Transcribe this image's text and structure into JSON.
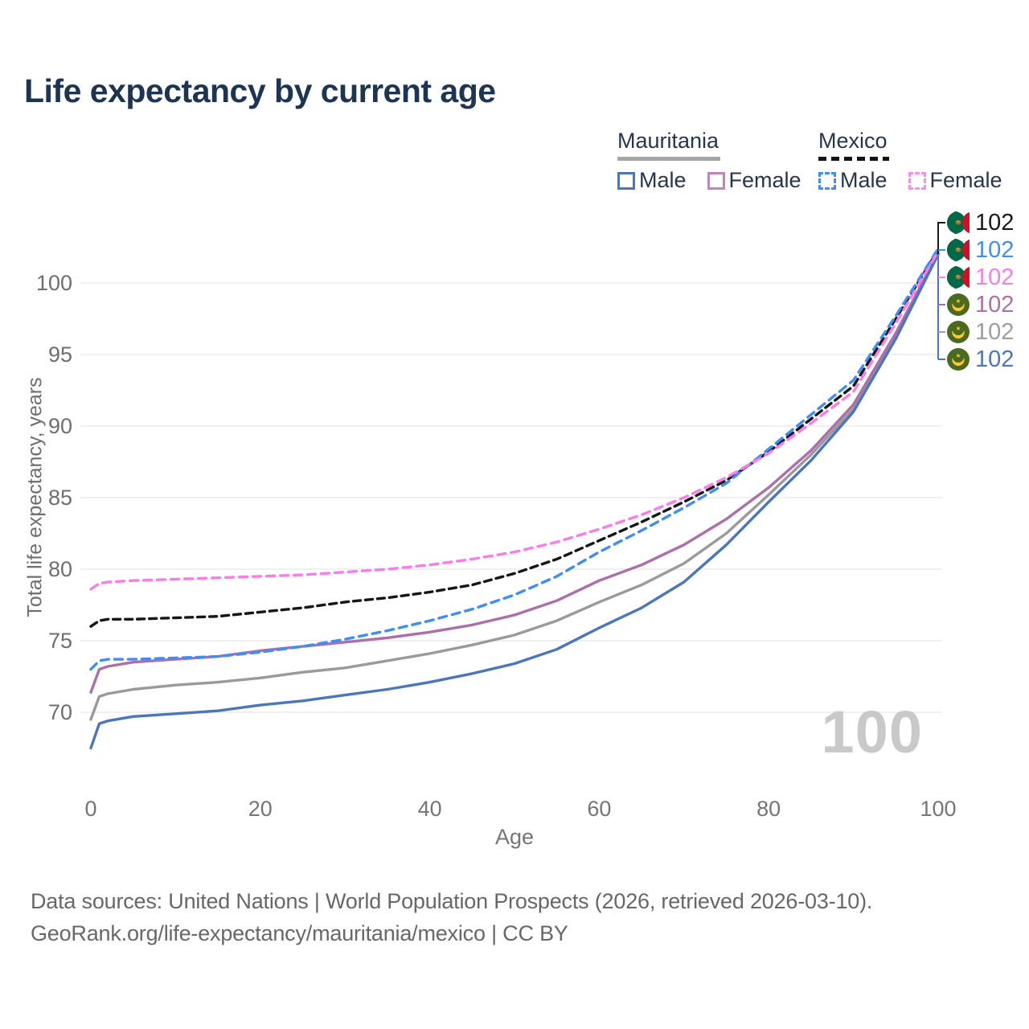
{
  "title": "Life expectancy by current age",
  "legend": {
    "mauritania": {
      "label": "Mauritania",
      "male_label": "Male",
      "female_label": "Female"
    },
    "mexico": {
      "label": "Mexico",
      "male_label": "Male",
      "female_label": "Female"
    }
  },
  "watermark": "100",
  "footer": {
    "line1": "Data sources: United Nations | World Population Prospects (2026, retrieved 2026-03-10).",
    "line2": "GeoRank.org/life-expectancy/mauritania/mexico | CC BY"
  },
  "colors": {
    "title_navy": "#1d3553",
    "axis_gray": "#6e6e6e",
    "gridline": "#ebebeb",
    "watermark_gray": "#c9c9c9",
    "mauritania_male": "#4b76bd",
    "mauritania_female": "#ad6fa9",
    "mauritania_both": "#9a9a9a",
    "mexico_male": "#3e8ef6",
    "mexico_female": "#fb7be8",
    "mexico_both": "#161616"
  },
  "chart_data": {
    "type": "line",
    "title": "Life expectancy by current age",
    "xlabel": "Age",
    "ylabel": "Total life expectancy, years",
    "xlim": [
      0,
      100
    ],
    "ylim": [
      66.5,
      102.5
    ],
    "xticks": [
      0,
      20,
      40,
      60,
      80,
      100
    ],
    "yticks": [
      70,
      75,
      80,
      85,
      90,
      95,
      100
    ],
    "grid": "horizontal-only",
    "legend_position": "top-right",
    "x": [
      0,
      1,
      2,
      5,
      10,
      15,
      20,
      25,
      30,
      35,
      40,
      45,
      50,
      55,
      60,
      65,
      70,
      75,
      80,
      85,
      90,
      95,
      100
    ],
    "series": [
      {
        "id": "mauritania-both",
        "name": "Mauritania Both sexes",
        "country": "Mauritania",
        "sex": "Both",
        "style": "solid",
        "color": "#9a9a9a",
        "dash": null,
        "values": [
          69.5,
          71.1,
          71.3,
          71.6,
          71.9,
          72.1,
          72.4,
          72.8,
          73.1,
          73.6,
          74.1,
          74.7,
          75.4,
          76.4,
          77.7,
          78.9,
          80.4,
          82.5,
          85.2,
          88.0,
          91.2,
          96.3,
          102.1
        ]
      },
      {
        "id": "mauritania-female",
        "name": "Mauritania Female",
        "country": "Mauritania",
        "sex": "Female",
        "style": "solid",
        "color": "#ad6fa9",
        "dash": null,
        "values": [
          71.4,
          73.0,
          73.2,
          73.5,
          73.7,
          73.9,
          74.3,
          74.6,
          74.9,
          75.2,
          75.6,
          76.1,
          76.8,
          77.8,
          79.2,
          80.3,
          81.7,
          83.5,
          85.7,
          88.3,
          91.5,
          96.5,
          102.1
        ]
      },
      {
        "id": "mauritania-male",
        "name": "Mauritania Male",
        "country": "Mauritania",
        "sex": "Male",
        "style": "solid",
        "color": "#4b76bd",
        "dash": null,
        "values": [
          67.5,
          69.2,
          69.4,
          69.7,
          69.9,
          70.1,
          70.5,
          70.8,
          71.2,
          71.6,
          72.1,
          72.7,
          73.4,
          74.4,
          75.9,
          77.3,
          79.1,
          81.7,
          84.7,
          87.6,
          91.0,
          96.1,
          102.0
        ]
      },
      {
        "id": "mexico-both",
        "name": "Mexico Both sexes",
        "country": "Mexico",
        "sex": "Both",
        "style": "dashed",
        "color": "#161616",
        "dash": "9 6",
        "values": [
          76.0,
          76.4,
          76.5,
          76.5,
          76.6,
          76.7,
          77.0,
          77.3,
          77.7,
          78.0,
          78.4,
          78.9,
          79.7,
          80.7,
          82.0,
          83.3,
          84.7,
          86.2,
          88.2,
          90.5,
          92.8,
          97.5,
          102.3
        ]
      },
      {
        "id": "mexico-male",
        "name": "Mexico Male",
        "country": "Mexico",
        "sex": "Male",
        "style": "dashed",
        "color": "#3e8ef6",
        "dash": "10 7",
        "values": [
          73.0,
          73.6,
          73.7,
          73.7,
          73.8,
          73.9,
          74.2,
          74.6,
          75.1,
          75.7,
          76.4,
          77.2,
          78.2,
          79.5,
          81.2,
          82.7,
          84.3,
          86.0,
          88.4,
          90.8,
          93.2,
          97.7,
          102.4
        ]
      },
      {
        "id": "mexico-female",
        "name": "Mexico Female",
        "country": "Mexico",
        "sex": "Female",
        "style": "dashed",
        "color": "#fb7be8",
        "dash": "10 7",
        "values": [
          78.6,
          79.0,
          79.1,
          79.2,
          79.3,
          79.4,
          79.5,
          79.6,
          79.8,
          80.0,
          80.3,
          80.7,
          81.2,
          81.9,
          82.8,
          83.8,
          85.0,
          86.4,
          88.1,
          90.2,
          92.4,
          97.2,
          102.2
        ]
      }
    ],
    "end_labels": [
      {
        "series": "Mexico Both sexes",
        "flag": "mexico",
        "value": "102",
        "color": "#1a1a1a"
      },
      {
        "series": "Mexico Male",
        "flag": "mexico",
        "value": "102",
        "color": "#3e8ef6"
      },
      {
        "series": "Mexico Female",
        "flag": "mexico",
        "value": "102",
        "color": "#fb7be8"
      },
      {
        "series": "Mauritania Female",
        "flag": "mauritania",
        "value": "102",
        "color": "#ad6fa9"
      },
      {
        "series": "Mauritania Both sexes",
        "flag": "mauritania",
        "value": "102",
        "color": "#9e9e9e"
      },
      {
        "series": "Mauritania Male",
        "flag": "mauritania",
        "value": "102",
        "color": "#4b76bd"
      }
    ]
  }
}
